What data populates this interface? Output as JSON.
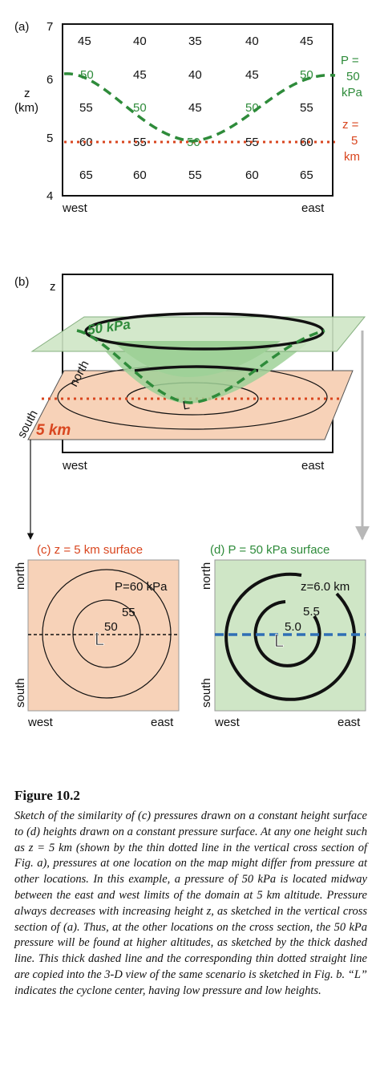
{
  "panel_a": {
    "label": "(a)",
    "y_axis_label": [
      "z",
      "(km)"
    ],
    "y_ticks": [
      "7",
      "6",
      "5",
      "4"
    ],
    "x_left": "west",
    "x_right": "east",
    "rows": [
      [
        "45",
        "40",
        "35",
        "40",
        "45"
      ],
      [
        "50",
        "45",
        "40",
        "45",
        "50"
      ],
      [
        "55",
        "50",
        "45",
        "50",
        "55"
      ],
      [
        "60",
        "55",
        "50",
        "55",
        "60"
      ],
      [
        "65",
        "60",
        "55",
        "60",
        "65"
      ]
    ],
    "pressure_label": [
      "P =",
      "50",
      "kPa"
    ],
    "height_label": [
      "z =",
      "5",
      "km"
    ]
  },
  "panel_b": {
    "label": "(b)",
    "z_label": "z",
    "plane_top_label": "50 kPa",
    "plane_bottom_label": "5 km",
    "north": "north",
    "south": "south",
    "low": "L",
    "x_left": "west",
    "x_right": "east"
  },
  "panel_c": {
    "title": "(c) z = 5 km surface",
    "north": "north",
    "south": "south",
    "west": "west",
    "east": "east",
    "outer_label": "P=60 kPa",
    "mid_label": "55",
    "inner_label": "50",
    "low": "L"
  },
  "panel_d": {
    "title": "(d) P = 50 kPa surface",
    "north": "north",
    "south": "south",
    "west": "west",
    "east": "east",
    "outer_label": "z=6.0 km",
    "mid_label": "5.5",
    "inner_label": "5.0",
    "low": "L"
  },
  "caption": {
    "title": "Figure 10.2",
    "text": "Sketch of the similarity of (c) pressures drawn on a constant height surface to (d) heights drawn on a constant pressure surface. At any one height such as z = 5 km (shown by the thin dotted line in the vertical cross section of Fig. a), pressures at one location on the map might differ from pressure at other locations. In this example, a pressure of 50 kPa is located midway between the east and west limits of the domain at 5 km altitude. Pressure always decreases with increasing height z, as sketched in the vertical cross section of (a). Thus, at the other locations on the cross section, the 50 kPa pressure will be found at higher altitudes, as sketched by the thick dashed line. This thick dashed line and the corresponding thin dotted straight line are copied into the 3-D view of the same scenario is sketched in Fig. b. “L” indicates the cyclone center, having low pressure and low heights."
  },
  "colors": {
    "green": "#2e8b3a",
    "orange": "#d9461f",
    "green_fill": "#cfe6c6",
    "peach_fill": "#f7d2b8"
  }
}
